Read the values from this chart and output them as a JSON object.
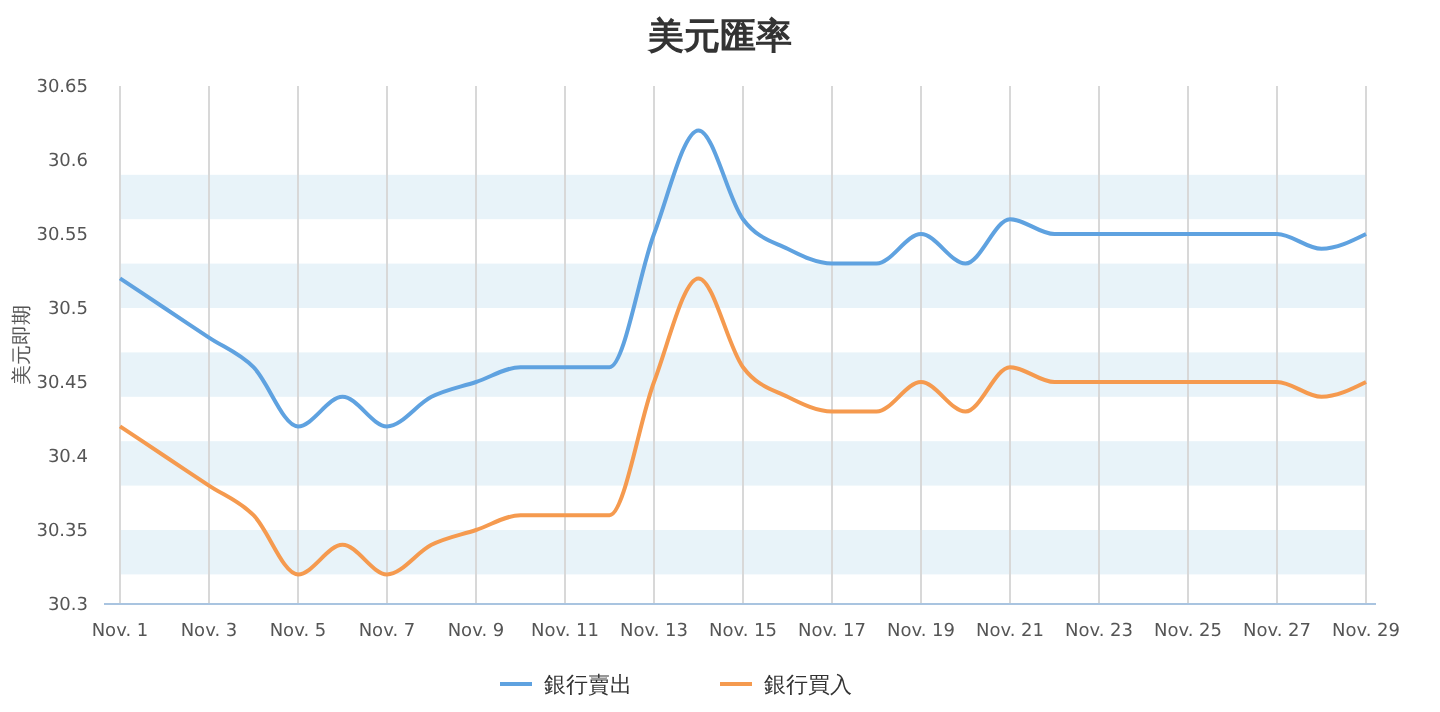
{
  "chart_data": {
    "type": "line",
    "title": "美元匯率",
    "ylabel": "美元即期",
    "categories": [
      "Nov. 1",
      null,
      "Nov. 3",
      null,
      "Nov. 5",
      null,
      "Nov. 7",
      null,
      "Nov. 9",
      null,
      "Nov. 11",
      null,
      "Nov. 13",
      null,
      "Nov. 15",
      null,
      "Nov. 17",
      null,
      "Nov. 19",
      null,
      "Nov. 21",
      null,
      "Nov. 23",
      null,
      "Nov. 25",
      null,
      "Nov. 27",
      null,
      "Nov. 29"
    ],
    "series": [
      {
        "name": "銀行賣出",
        "color": "#5fa2e0",
        "values": [
          30.52,
          30.5,
          30.48,
          30.46,
          30.42,
          30.44,
          30.42,
          30.44,
          30.45,
          30.46,
          30.46,
          30.46,
          30.55,
          30.62,
          30.56,
          30.54,
          30.53,
          30.53,
          30.55,
          30.53,
          30.56,
          30.55,
          30.55,
          30.55,
          30.55,
          30.55,
          30.55,
          30.54,
          30.55
        ]
      },
      {
        "name": "銀行買入",
        "color": "#f59a4f",
        "values": [
          30.42,
          30.4,
          30.38,
          30.36,
          30.32,
          30.34,
          30.32,
          30.34,
          30.35,
          30.36,
          30.36,
          30.36,
          30.45,
          30.52,
          30.46,
          30.44,
          30.43,
          30.43,
          30.45,
          30.43,
          30.46,
          30.45,
          30.45,
          30.45,
          30.45,
          30.45,
          30.45,
          30.44,
          30.45
        ]
      }
    ],
    "ylim": [
      30.3,
      30.65
    ],
    "yticks": [
      30.3,
      30.35,
      30.4,
      30.45,
      30.5,
      30.55,
      30.6,
      30.65
    ],
    "bands": [
      {
        "axis": "y",
        "from": 30.32,
        "to": 30.35,
        "color": "#e8f3f9"
      },
      {
        "axis": "y",
        "from": 30.38,
        "to": 30.41,
        "color": "#e8f3f9"
      },
      {
        "axis": "y",
        "from": 30.44,
        "to": 30.47,
        "color": "#e8f3f9"
      },
      {
        "axis": "y",
        "from": 30.5,
        "to": 30.53,
        "color": "#e8f3f9"
      },
      {
        "axis": "y",
        "from": 30.56,
        "to": 30.59,
        "color": "#e8f3f9"
      }
    ],
    "grid": "x",
    "legend": "bottom",
    "line_style": "solid",
    "marker": "none"
  }
}
